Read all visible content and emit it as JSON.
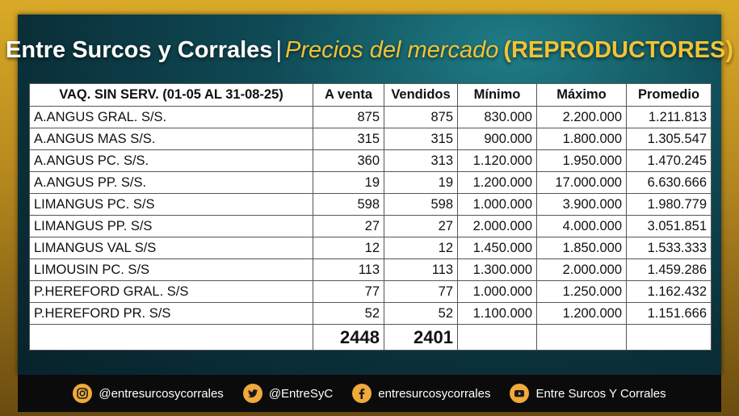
{
  "title": {
    "brand": "Entre Surcos y Corrales",
    "separator": "|",
    "subtitle": "Precios del mercado",
    "category": "(REPRODUCTORES)"
  },
  "table": {
    "headers": [
      "VAQ. SIN SERV. (01-05 AL 31-08-25)",
      "A venta",
      "Vendidos",
      "Mínimo",
      "Máximo",
      "Promedio"
    ],
    "rows": [
      [
        "A.ANGUS GRAL. S/S.",
        "875",
        "875",
        "830.000",
        "2.200.000",
        "1.211.813"
      ],
      [
        "A.ANGUS MAS S/S.",
        "315",
        "315",
        "900.000",
        "1.800.000",
        "1.305.547"
      ],
      [
        "A.ANGUS PC. S/S.",
        "360",
        "313",
        "1.120.000",
        "1.950.000",
        "1.470.245"
      ],
      [
        "A.ANGUS PP. S/S.",
        "19",
        "19",
        "1.200.000",
        "17.000.000",
        "6.630.666"
      ],
      [
        "LIMANGUS PC. S/S",
        "598",
        "598",
        "1.000.000",
        "3.900.000",
        "1.980.779"
      ],
      [
        "LIMANGUS PP. S/S",
        "27",
        "27",
        "2.000.000",
        "4.000.000",
        "3.051.851"
      ],
      [
        "LIMANGUS VAL S/S",
        "12",
        "12",
        "1.450.000",
        "1.850.000",
        "1.533.333"
      ],
      [
        "LIMOUSIN PC. S/S",
        "113",
        "113",
        "1.300.000",
        "2.000.000",
        "1.459.286"
      ],
      [
        "P.HEREFORD GRAL. S/S",
        "77",
        "77",
        "1.000.000",
        "1.250.000",
        "1.162.432"
      ],
      [
        "P.HEREFORD PR. S/S",
        "52",
        "52",
        "1.100.000",
        "1.200.000",
        "1.151.666"
      ]
    ],
    "totals": {
      "a_venta": "2448",
      "vendidos": "2401"
    }
  },
  "footer": {
    "socials": [
      {
        "icon": "instagram-icon",
        "label": "@entresurcosycorrales"
      },
      {
        "icon": "twitter-icon",
        "label": "@EntreSyC"
      },
      {
        "icon": "facebook-icon",
        "label": "entresurcosycorrales"
      },
      {
        "icon": "youtube-icon",
        "label": "Entre Surcos Y Corrales"
      }
    ]
  },
  "colors": {
    "accent": "#f2c335",
    "panel": "#0f4a55",
    "footer": "#0b0b0b"
  }
}
